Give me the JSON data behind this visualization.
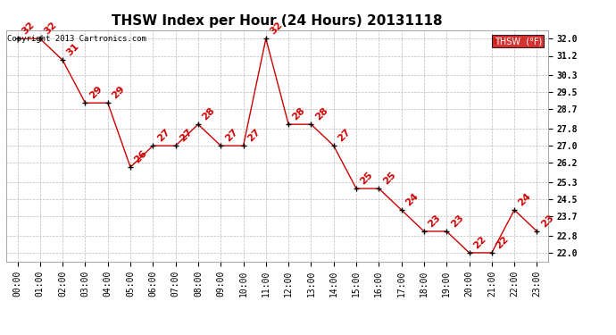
{
  "title": "THSW Index per Hour (24 Hours) 20131118",
  "hours": [
    "00:00",
    "01:00",
    "02:00",
    "03:00",
    "04:00",
    "05:00",
    "06:00",
    "07:00",
    "08:00",
    "09:00",
    "10:00",
    "11:00",
    "12:00",
    "13:00",
    "14:00",
    "15:00",
    "16:00",
    "17:00",
    "18:00",
    "19:00",
    "20:00",
    "21:00",
    "22:00",
    "23:00"
  ],
  "values": [
    32,
    32,
    31,
    29,
    29,
    26,
    27,
    27,
    28,
    27,
    27,
    32,
    28,
    28,
    27,
    25,
    25,
    24,
    23,
    23,
    22,
    22,
    24,
    23
  ],
  "yticks": [
    22.0,
    22.8,
    23.7,
    24.5,
    25.3,
    26.2,
    27.0,
    27.8,
    28.7,
    29.5,
    30.3,
    31.2,
    32.0
  ],
  "ymin": 21.6,
  "ymax": 32.4,
  "line_color": "#cc0000",
  "marker_color": "#000000",
  "label_color": "#cc0000",
  "background_color": "#ffffff",
  "grid_color": "#bbbbbb",
  "copyright_text": "Copyright 2013 Cartronics.com",
  "legend_label": "THSW  (°F)",
  "legend_bg": "#cc0000",
  "legend_fg": "#ffffff",
  "title_fontsize": 11,
  "tick_fontsize": 7,
  "label_fontsize": 8,
  "copyright_fontsize": 6.5
}
